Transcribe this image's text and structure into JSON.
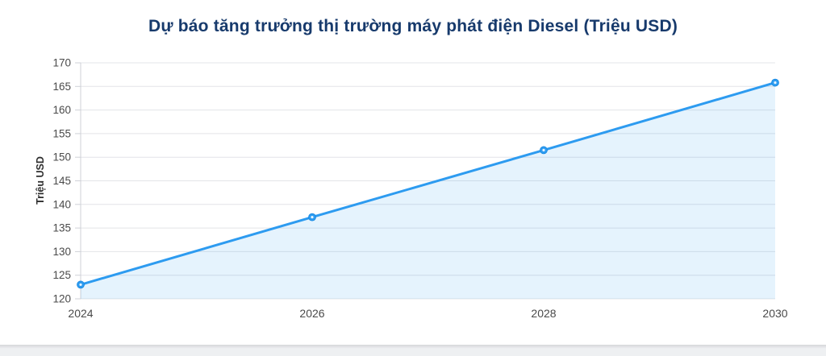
{
  "header": {
    "title": "Dự báo tăng trưởng thị trường máy phát điện Diesel (Triệu USD)"
  },
  "chart_data": {
    "type": "line",
    "title": "Dự báo tăng trưởng thị trường máy phát điện Diesel (Triệu USD)",
    "xlabel": "",
    "ylabel": "Triệu USD",
    "x": [
      2024,
      2026,
      2028,
      2030
    ],
    "x_tick_labels": [
      "2024",
      "2026",
      "2028",
      "2030"
    ],
    "series": [
      {
        "name": "Triệu USD",
        "values": [
          123,
          137.3,
          151.5,
          165.8
        ]
      }
    ],
    "ylim": [
      120,
      170
    ],
    "ytick_step": 5,
    "grid": true,
    "legend": "none",
    "area_fill": true
  },
  "colors": {
    "title": "#173a6c",
    "line": "#2d9bf0",
    "marker_stroke": "#1486e0",
    "marker_center": "#e8f4fd",
    "area": "rgba(45,155,240,0.12)",
    "grid": "#e3e4e8",
    "axis": "#cfd1d7",
    "tick_label": "#4a4a4a",
    "bottom_band": "#eef0f2"
  }
}
